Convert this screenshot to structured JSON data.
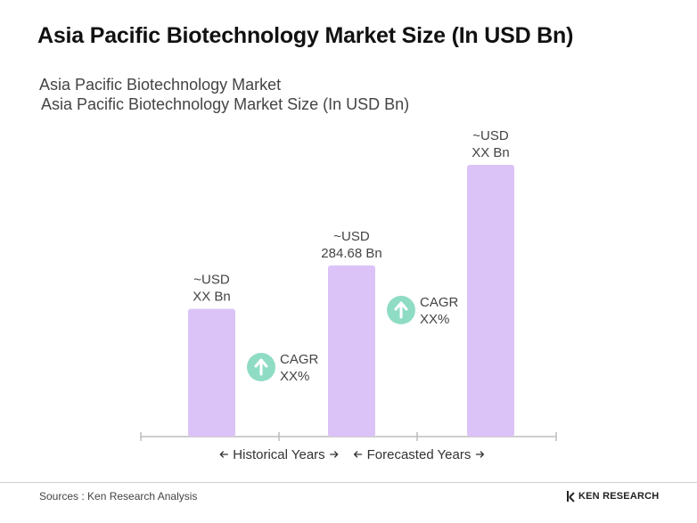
{
  "title": "Asia Pacific Biotechnology Market Size (In USD Bn)",
  "subtitle_1": "Asia Pacific Biotechnology Market",
  "subtitle_2": "Asia Pacific Biotechnology Market Size (In USD Bn)",
  "source": "Sources : Ken Research Analysis",
  "brand": "KEN RESEARCH",
  "colors": {
    "bar": "#dcc3f7",
    "cagr_icon": "#8fdcc5",
    "axis": "#bdbdbd"
  },
  "chart_data": {
    "type": "bar",
    "title": "Asia Pacific Biotechnology Market Size (In USD Bn)",
    "ylabel": "",
    "xlabel": "",
    "grid": false,
    "bars": [
      {
        "label_line1": "~USD",
        "label_line2": "XX Bn",
        "relative_height": 0.47
      },
      {
        "label_line1": "~USD",
        "label_line2": "284.68  Bn",
        "value": 284.68,
        "relative_height": 0.63
      },
      {
        "label_line1": "~USD",
        "label_line2": "XX Bn",
        "relative_height": 1.0
      }
    ],
    "cagr": [
      {
        "label": "CAGR",
        "value": "XX%"
      },
      {
        "label": "CAGR",
        "value": "XX%"
      }
    ],
    "periods": [
      {
        "label": "Historical Years"
      },
      {
        "label": "Forecasted Years"
      }
    ]
  }
}
